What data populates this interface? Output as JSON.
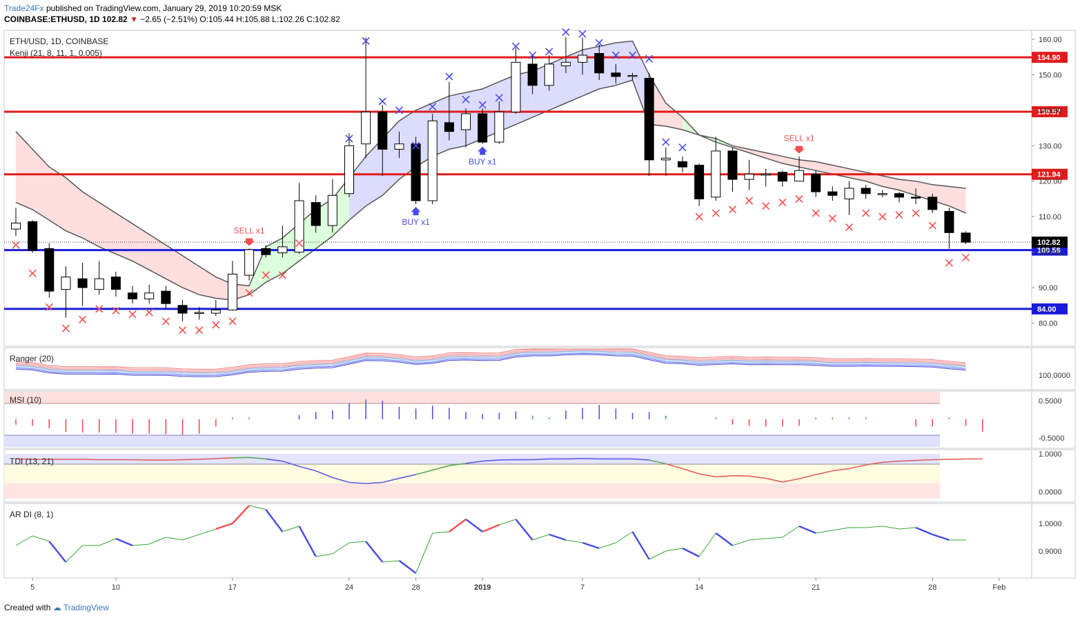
{
  "header": {
    "brand": "Trade24Fx",
    "published": "published on TradingView.com, January 29, 2019 10:20:59 MSK",
    "symbol": "COINBASE:ETHUSD, 1D",
    "last": "102.82",
    "change_arrow": "▼",
    "change": "−2.65 (−2.51%)",
    "ohlc": "O:105.44 H:105.88 L:102.26 C:102.82"
  },
  "footer": {
    "created_with": "Created with",
    "tradingview": "TradingView"
  },
  "chart_data": {
    "type": "candlestick",
    "title": "ETH/USD, 1D, COINBASE",
    "indicator_label": "Kenji (21, 8, 11, 1, 0.005)",
    "ylim": [
      75,
      165
    ],
    "price_ticks": [
      160,
      150,
      140,
      130,
      120,
      110,
      100,
      90,
      80
    ],
    "x_tick_labels": [
      {
        "label": "5",
        "index": 1
      },
      {
        "label": "10",
        "index": 6
      },
      {
        "label": "17",
        "index": 13
      },
      {
        "label": "24",
        "index": 20
      },
      {
        "label": "28",
        "index": 24
      },
      {
        "label": "2019",
        "index": 28
      },
      {
        "label": "7",
        "index": 34
      },
      {
        "label": "14",
        "index": 41
      },
      {
        "label": "21",
        "index": 48
      },
      {
        "label": "28",
        "index": 55
      },
      {
        "label": "Feb",
        "index": 59
      }
    ],
    "candles": [
      [
        106.5,
        108.2,
        104.5,
        112.5
      ],
      [
        108.6,
        100.5,
        99.8,
        109.0
      ],
      [
        101.0,
        89.0,
        87.2,
        102.5
      ],
      [
        89.5,
        93.0,
        81.5,
        96.0
      ],
      [
        92.5,
        90.0,
        84.8,
        97.0
      ],
      [
        89.5,
        92.5,
        88.0,
        97.5
      ],
      [
        93.0,
        89.5,
        87.5,
        94.5
      ],
      [
        88.5,
        86.8,
        85.5,
        90.5
      ],
      [
        86.8,
        88.5,
        85.5,
        90.8
      ],
      [
        89.0,
        85.5,
        84.0,
        90.5
      ],
      [
        85.0,
        82.8,
        80.5,
        86.5
      ],
      [
        82.8,
        83.0,
        81.0,
        84.5
      ],
      [
        82.8,
        83.7,
        82.0,
        86.5
      ],
      [
        83.7,
        93.8,
        83.5,
        97.5
      ],
      [
        93.5,
        100.7,
        92.0,
        101.0
      ],
      [
        101.0,
        99.3,
        98.5,
        102.0
      ],
      [
        99.8,
        101.5,
        98.5,
        107.5
      ],
      [
        100.0,
        114.5,
        99.5,
        119.5
      ],
      [
        114.0,
        107.5,
        105.5,
        116.0
      ],
      [
        107.5,
        116.0,
        105.5,
        120.5
      ],
      [
        116.5,
        130.0,
        115.5,
        133.5
      ],
      [
        130.5,
        139.5,
        126.5,
        160.5
      ],
      [
        139.5,
        129.0,
        121.5,
        141.5
      ],
      [
        129.0,
        130.5,
        126.5,
        134.0
      ],
      [
        130.5,
        114.5,
        113.5,
        132.5
      ],
      [
        114.5,
        137.0,
        113.5,
        139.0
      ],
      [
        136.5,
        134.0,
        131.5,
        148.0
      ],
      [
        134.5,
        139.0,
        129.5,
        140.5
      ],
      [
        139.0,
        131.0,
        130.5,
        140.5
      ],
      [
        131.0,
        139.5,
        130.5,
        142.5
      ],
      [
        139.5,
        153.5,
        139.0,
        157.5
      ],
      [
        153.0,
        147.0,
        144.5,
        155.5
      ],
      [
        147.0,
        153.0,
        145.5,
        155.5
      ],
      [
        152.5,
        153.5,
        150.5,
        160.5
      ],
      [
        153.5,
        155.5,
        150.0,
        160.5
      ],
      [
        156.0,
        150.5,
        148.5,
        158.5
      ],
      [
        150.5,
        149.5,
        147.5,
        153.0
      ],
      [
        149.5,
        149.8,
        148.5,
        150.5
      ],
      [
        149.0,
        126.0,
        121.5,
        150.5
      ],
      [
        126.0,
        126.5,
        121.5,
        129.5
      ],
      [
        125.5,
        124.0,
        122.5,
        127.0
      ],
      [
        124.5,
        115.0,
        113.0,
        125.0
      ],
      [
        115.5,
        128.5,
        114.5,
        132.5
      ],
      [
        128.5,
        120.5,
        117.0,
        129.5
      ],
      [
        120.5,
        122.0,
        117.5,
        126.0
      ],
      [
        122.0,
        122.0,
        118.5,
        123.5
      ],
      [
        122.5,
        120.0,
        118.5,
        123.0
      ],
      [
        120.0,
        123.0,
        120.0,
        127.0
      ],
      [
        122.0,
        117.0,
        115.5,
        123.0
      ],
      [
        117.0,
        116.0,
        114.5,
        118.5
      ],
      [
        115.0,
        118.0,
        110.5,
        120.0
      ],
      [
        118.0,
        116.5,
        115.0,
        119.0
      ],
      [
        116.5,
        116.5,
        115.5,
        117.5
      ],
      [
        116.5,
        115.5,
        114.0,
        117.0
      ],
      [
        115.5,
        115.3,
        113.5,
        118.0
      ],
      [
        115.5,
        112.0,
        111.0,
        116.5
      ],
      [
        111.5,
        105.5,
        101.0,
        112.5
      ],
      [
        105.4,
        102.8,
        102.3,
        105.9
      ]
    ],
    "upper_line": [
      134,
      129,
      124,
      121,
      117,
      114,
      111,
      108,
      105,
      102,
      99,
      96,
      93,
      91,
      90.5,
      101.5,
      104,
      108,
      112,
      115,
      121,
      127,
      132,
      137,
      140,
      142,
      144,
      145,
      146,
      148,
      150,
      151,
      153,
      155,
      157,
      158,
      159,
      159.5,
      150,
      142,
      138,
      133,
      132,
      130,
      129,
      128,
      127,
      126,
      125.5,
      124.5,
      123.5,
      122.5,
      121.5,
      120.5,
      120,
      119,
      118.5,
      118
    ],
    "lower_line": [
      114,
      112,
      109,
      106,
      104,
      101.5,
      99.5,
      97.5,
      95,
      92.5,
      90,
      88,
      87,
      86.5,
      88,
      91.5,
      94,
      97.5,
      101,
      104.5,
      109,
      113,
      116,
      120.5,
      124,
      127,
      129,
      130,
      132,
      134,
      136,
      138,
      140,
      142,
      144,
      146,
      147,
      148.5,
      136,
      135.5,
      134.5,
      133,
      131,
      129.5,
      128,
      126.5,
      125,
      124,
      123,
      122,
      121,
      120,
      118.5,
      117.5,
      116,
      114.5,
      113,
      111
    ],
    "markers": [
      {
        "label": "SELL x1",
        "index": 14,
        "side": "sell"
      },
      {
        "label": "BUY x1",
        "index": 24,
        "side": "buy"
      },
      {
        "label": "BUY x1",
        "index": 28,
        "side": "buy"
      },
      {
        "label": "SELL x1",
        "index": 47,
        "side": "sell"
      }
    ],
    "horizontal_levels": [
      {
        "price": 154.9,
        "label": "154.90",
        "color": "#e01b1b"
      },
      {
        "price": 139.57,
        "label": "139.57",
        "color": "#e01b1b"
      },
      {
        "price": 121.94,
        "label": "121.94",
        "color": "#e01b1b"
      },
      {
        "price": 100.58,
        "label": "100.58",
        "color": "#1a1adb"
      },
      {
        "price": 84.0,
        "label": "84.00",
        "color": "#1a1adb"
      }
    ],
    "last_price": {
      "price": 102.82,
      "label": "102.82"
    },
    "cross_above": [
      {
        "i": 20,
        "p": 132
      },
      {
        "i": 21,
        "p": 159.5
      },
      {
        "i": 22,
        "p": 142.5
      },
      {
        "i": 23,
        "p": 140
      },
      {
        "i": 24,
        "p": 130
      },
      {
        "i": 25,
        "p": 141
      },
      {
        "i": 26,
        "p": 149.5
      },
      {
        "i": 27,
        "p": 143
      },
      {
        "i": 28,
        "p": 141.5
      },
      {
        "i": 29,
        "p": 143.5
      },
      {
        "i": 30,
        "p": 158
      },
      {
        "i": 31,
        "p": 155.5
      },
      {
        "i": 32,
        "p": 156.5
      },
      {
        "i": 33,
        "p": 162
      },
      {
        "i": 34,
        "p": 161.5
      },
      {
        "i": 35,
        "p": 159
      },
      {
        "i": 36,
        "p": 155.5
      },
      {
        "i": 37,
        "p": 155.5
      },
      {
        "i": 38,
        "p": 154.5
      },
      {
        "i": 39,
        "p": 131
      },
      {
        "i": 40,
        "p": 129.5
      }
    ],
    "cross_below": [
      {
        "i": 0,
        "p": 102
      },
      {
        "i": 1,
        "p": 94
      },
      {
        "i": 2,
        "p": 84.5
      },
      {
        "i": 3,
        "p": 78.5
      },
      {
        "i": 4,
        "p": 81
      },
      {
        "i": 5,
        "p": 84
      },
      {
        "i": 6,
        "p": 83.5
      },
      {
        "i": 7,
        "p": 82.5
      },
      {
        "i": 8,
        "p": 83
      },
      {
        "i": 9,
        "p": 80.5
      },
      {
        "i": 10,
        "p": 78
      },
      {
        "i": 11,
        "p": 78
      },
      {
        "i": 12,
        "p": 79.5
      },
      {
        "i": 13,
        "p": 80.5
      },
      {
        "i": 14,
        "p": 88.5
      },
      {
        "i": 15,
        "p": 93.5
      },
      {
        "i": 16,
        "p": 93.5
      },
      {
        "i": 17,
        "p": 102.5
      },
      {
        "i": 41,
        "p": 110
      },
      {
        "i": 42,
        "p": 111
      },
      {
        "i": 43,
        "p": 112
      },
      {
        "i": 44,
        "p": 114.5
      },
      {
        "i": 45,
        "p": 113
      },
      {
        "i": 46,
        "p": 114
      },
      {
        "i": 47,
        "p": 115
      },
      {
        "i": 48,
        "p": 111
      },
      {
        "i": 49,
        "p": 109.5
      },
      {
        "i": 50,
        "p": 107
      },
      {
        "i": 51,
        "p": 111
      },
      {
        "i": 52,
        "p": 110
      },
      {
        "i": 53,
        "p": 110.5
      },
      {
        "i": 54,
        "p": 111
      },
      {
        "i": 55,
        "p": 107.5
      },
      {
        "i": 56,
        "p": 97
      },
      {
        "i": 57,
        "p": 98.5
      }
    ],
    "subpanels": [
      {
        "name": "Ranger (20)",
        "tick_labels": [
          "100.0000"
        ]
      },
      {
        "name": "MSI (10)",
        "tick_labels": [
          "0.5000",
          "-0.5000"
        ],
        "values": [
          -0.15,
          -0.18,
          -0.25,
          -0.35,
          -0.37,
          -0.37,
          -0.38,
          -0.4,
          -0.4,
          -0.42,
          -0.45,
          -0.4,
          -0.2,
          0.05,
          0.05,
          0,
          0,
          0.12,
          0.2,
          0.25,
          0.45,
          0.55,
          0.52,
          0.35,
          0.3,
          0.38,
          0.32,
          0.2,
          0.15,
          0.18,
          0.22,
          0.1,
          0.05,
          0.25,
          0.32,
          0.4,
          0.3,
          0.18,
          0.2,
          0.1,
          0,
          0,
          0.05,
          -0.15,
          -0.18,
          -0.2,
          -0.2,
          -0.18,
          0.05,
          0.05,
          0.05,
          0.05,
          0,
          0,
          -0.2,
          -0.2,
          0.05,
          -0.18,
          -0.35
        ]
      },
      {
        "name": "TDI (13, 21)",
        "tick_labels": [
          "1.0000",
          "0.0000"
        ],
        "values": [
          0.88,
          0.87,
          0.87,
          0.87,
          0.87,
          0.86,
          0.86,
          0.86,
          0.85,
          0.85,
          0.86,
          0.87,
          0.89,
          0.91,
          0.92,
          0.88,
          0.82,
          0.68,
          0.56,
          0.38,
          0.25,
          0.22,
          0.25,
          0.36,
          0.46,
          0.58,
          0.7,
          0.76,
          0.82,
          0.85,
          0.86,
          0.86,
          0.88,
          0.88,
          0.89,
          0.88,
          0.88,
          0.88,
          0.85,
          0.75,
          0.62,
          0.48,
          0.4,
          0.43,
          0.42,
          0.36,
          0.26,
          0.35,
          0.46,
          0.56,
          0.62,
          0.72,
          0.79,
          0.82,
          0.84,
          0.86,
          0.87,
          0.88,
          0.88
        ]
      },
      {
        "name": "AR DI (8, 1)",
        "tick_labels": [
          "1.0000",
          "0.9000"
        ],
        "values": [
          0.92,
          0.955,
          0.935,
          0.86,
          0.92,
          0.92,
          0.945,
          0.92,
          0.925,
          0.95,
          0.94,
          0.96,
          0.98,
          1.0,
          1.065,
          1.05,
          0.97,
          0.99,
          0.88,
          0.89,
          0.93,
          0.935,
          0.86,
          0.865,
          0.82,
          0.965,
          0.97,
          1.015,
          0.97,
          0.995,
          1.015,
          0.94,
          0.96,
          0.94,
          0.93,
          0.91,
          0.93,
          0.97,
          0.87,
          0.9,
          0.91,
          0.88,
          0.965,
          0.92,
          0.94,
          0.945,
          0.95,
          0.99,
          0.965,
          0.975,
          0.985,
          0.985,
          0.99,
          0.98,
          0.985,
          0.96,
          0.94,
          0.94
        ]
      }
    ]
  },
  "colors": {
    "up_fill": "#ffffff",
    "down_fill": "#000000",
    "candle_border": "#000000",
    "red_band_fill": "#ffdede",
    "blue_band_fill": "#dcdcff",
    "green_band_fill": "#dcffdc",
    "band_line": "#555555",
    "red_level": "#e01b1b",
    "blue_level": "#1a1adb",
    "cross_above": "#4a4ae6",
    "cross_below": "#f05050",
    "sell": "#f05050",
    "buy": "#4a4ae6"
  }
}
